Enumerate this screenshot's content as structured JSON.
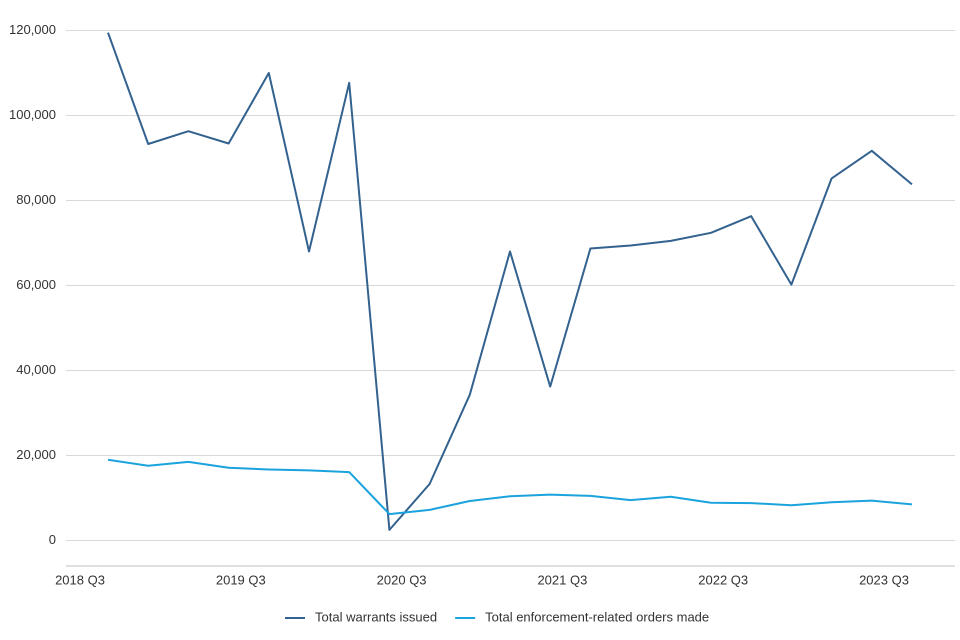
{
  "chart_data": {
    "type": "line",
    "categories": [
      "2018 Q3",
      null,
      null,
      null,
      "2019 Q3",
      null,
      null,
      null,
      "2020 Q3",
      null,
      null,
      null,
      "2021 Q3",
      null,
      null,
      null,
      "2022 Q3",
      null,
      null,
      null,
      "2023 Q3"
    ],
    "series": [
      {
        "name": "Total warrants issued",
        "color": "#33628f",
        "values": [
          119500,
          93300,
          96300,
          93400,
          110000,
          68000,
          107700,
          2500,
          13300,
          34300,
          68000,
          36200,
          68700,
          69400,
          70500,
          72400,
          76300,
          60200,
          85200,
          91700,
          83800
        ]
      },
      {
        "name": "Total enforcement-related orders made",
        "color": "#1ba3dd",
        "values": [
          19000,
          17600,
          18500,
          17100,
          16700,
          16500,
          16100,
          6200,
          7200,
          9300,
          10400,
          10800,
          10500,
          9500,
          10300,
          8900,
          8800,
          8300,
          9000,
          9400,
          8500
        ]
      }
    ],
    "ylim": [
      -6000,
      122000
    ],
    "yticks": [
      0,
      {
        "value": 20000,
        "label": "20,000"
      },
      {
        "value": 40000,
        "label": "40,000"
      },
      {
        "value": 60000,
        "label": "60,000"
      },
      {
        "value": 80000,
        "label": "80,000"
      },
      {
        "value": 100000,
        "label": "100,000"
      },
      {
        "value": 120000,
        "label": "120,000"
      }
    ],
    "grid": true,
    "legend": "bottom"
  }
}
